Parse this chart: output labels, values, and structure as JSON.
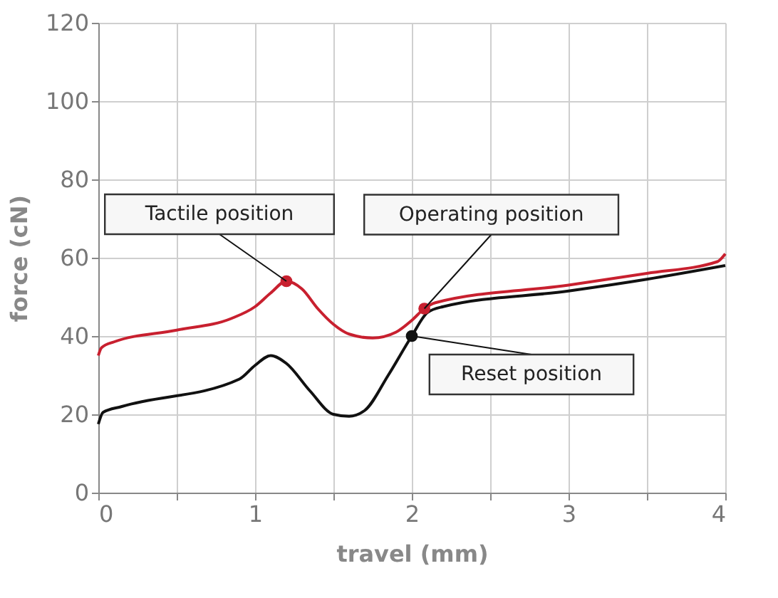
{
  "chart_data": {
    "type": "line",
    "xlabel": "travel (mm)",
    "ylabel": "force (cN)",
    "xlim": [
      0,
      4
    ],
    "ylim": [
      0,
      120
    ],
    "xticks": [
      0,
      {
        "value": 0.5,
        "label": null
      },
      1,
      {
        "value": 1.5,
        "label": null
      },
      2,
      {
        "value": 2.5,
        "label": null
      },
      3,
      {
        "value": 3.5,
        "label": null
      },
      4
    ],
    "yticks": [
      0,
      20,
      40,
      60,
      80,
      100,
      120
    ],
    "grid": true,
    "line_style": "solid",
    "marker": "none",
    "series": [
      {
        "color": "#c8202f",
        "x": [
          0,
          0.02,
          0.1,
          0.5,
          0.85,
          1.0,
          1.1,
          1.2,
          1.3,
          1.4,
          1.5,
          1.6,
          1.75,
          1.9,
          2.0,
          2.08,
          2.15,
          3.0,
          3.5,
          3.95,
          4.0
        ],
        "values": [
          35,
          37,
          38.5,
          41.5,
          44.5,
          47.5,
          51,
          54,
          52,
          47,
          43,
          40.5,
          39.5,
          41,
          44,
          47,
          48.5,
          53,
          56,
          59,
          61
        ]
      },
      {
        "color": "#111111",
        "x": [
          0,
          0.03,
          0.15,
          0.9,
          1.0,
          1.1,
          1.2,
          1.35,
          1.5,
          1.6,
          1.7,
          1.85,
          2.0,
          2.1,
          2.2,
          3.0,
          3.5,
          4.0
        ],
        "values": [
          17.5,
          20.5,
          22,
          29,
          32.5,
          35,
          33,
          26,
          20,
          19.5,
          21,
          30,
          40,
          46,
          47.5,
          51.5,
          54.5,
          58
        ]
      },
      {
        "type": "scatter",
        "marker": "circle",
        "x": [
          1.2,
          2.08,
          2.0
        ],
        "values": [
          54,
          47,
          40
        ],
        "colors": [
          "#c8202f",
          "#c8202f",
          "#111111"
        ]
      }
    ],
    "annotations": [
      {
        "text": "Tactile position",
        "x": 1.2,
        "y": 54
      },
      {
        "text": "Operating position",
        "x": 2.08,
        "y": 47
      },
      {
        "text": "Reset position",
        "x": 2.0,
        "y": 40
      }
    ]
  }
}
